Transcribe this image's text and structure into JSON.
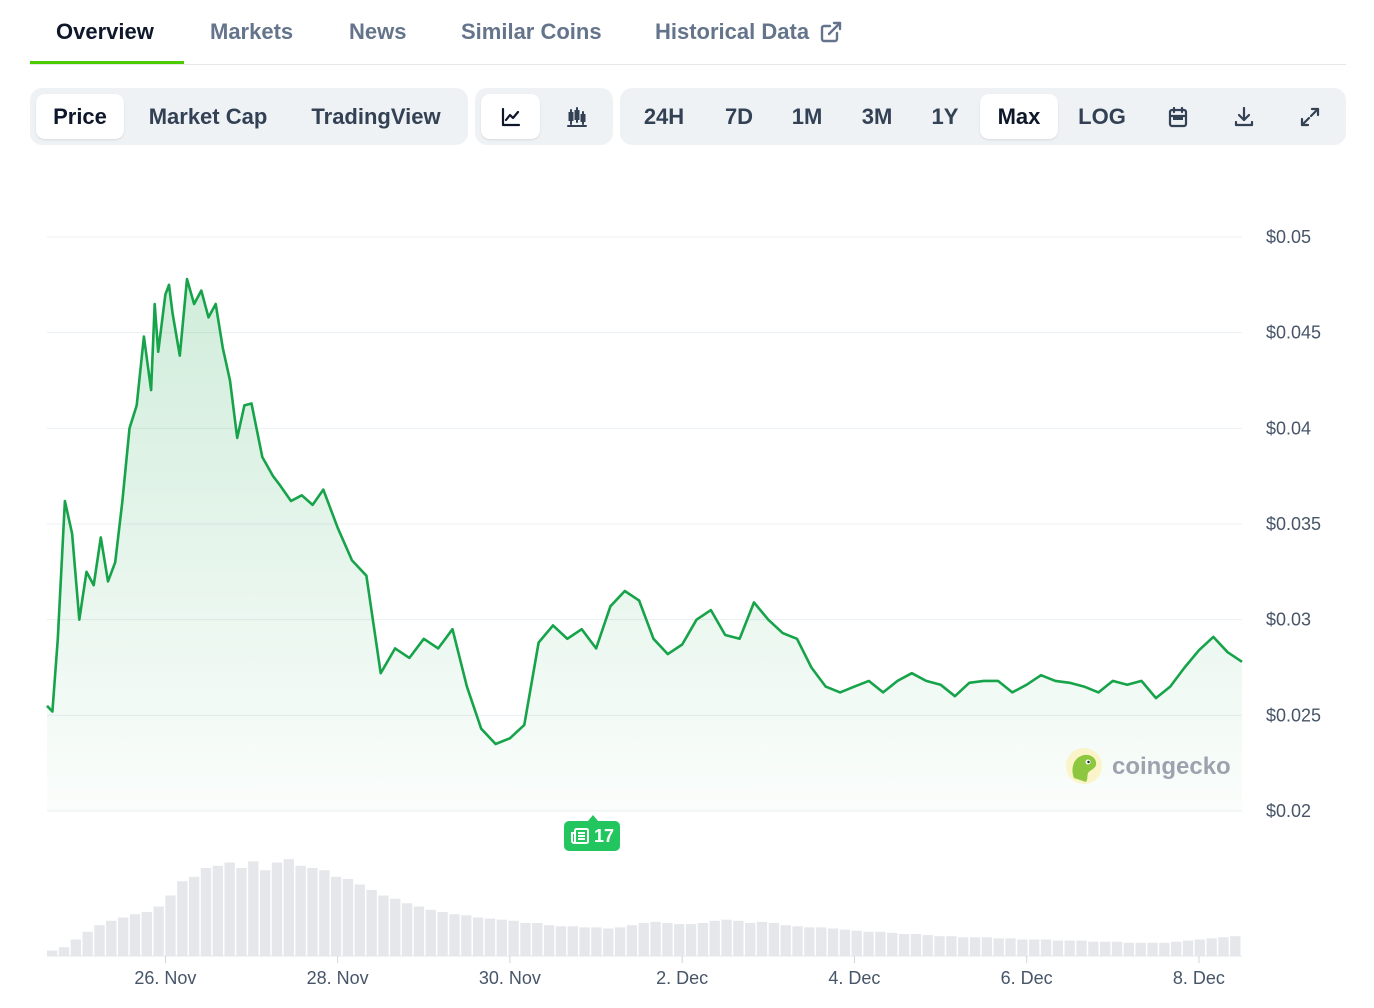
{
  "tabs": [
    {
      "label": "Overview",
      "active": true
    },
    {
      "label": "Markets"
    },
    {
      "label": "News"
    },
    {
      "label": "Similar Coins"
    },
    {
      "label": "Historical Data",
      "icon": "external-link-icon"
    }
  ],
  "toolbar": {
    "view_options": [
      "Price",
      "Market Cap",
      "TradingView"
    ],
    "selected_view": "Price",
    "chart_styles": [
      {
        "icon": "line-chart-icon",
        "active": true
      },
      {
        "icon": "candlestick-chart-icon",
        "active": false
      }
    ],
    "ranges": [
      "24H",
      "7D",
      "1M",
      "3M",
      "1Y",
      "Max",
      "LOG"
    ],
    "selected_range": "Max",
    "tools": [
      "calendar-icon",
      "download-icon",
      "expand-icon"
    ]
  },
  "news_badge": {
    "count": "17",
    "icon": "newspaper-icon"
  },
  "watermark": {
    "text": "coingecko",
    "icon": "coingecko-logo-icon"
  },
  "colors": {
    "accent": "#4bcc00",
    "line": "#16a34a",
    "badge": "#22c55e",
    "volume": "#e5e7eb"
  },
  "chart_data": {
    "type": "area",
    "title": "",
    "xlabel": "",
    "ylabel": "",
    "y_axis_position": "right",
    "grid": true,
    "ylim": [
      0.02,
      0.05
    ],
    "xlim": [
      "2024-11-24T15:00",
      "2024-12-08T12:00"
    ],
    "yticks": [
      {
        "value": 0.05,
        "label": "$0.05"
      },
      {
        "value": 0.045,
        "label": "$0.045"
      },
      {
        "value": 0.04,
        "label": "$0.04"
      },
      {
        "value": 0.035,
        "label": "$0.035"
      },
      {
        "value": 0.03,
        "label": "$0.03"
      },
      {
        "value": 0.025,
        "label": "$0.025"
      },
      {
        "value": 0.02,
        "label": "$0.02"
      }
    ],
    "xticks": [
      {
        "value": "2024-11-26",
        "label": "26. Nov"
      },
      {
        "value": "2024-11-28",
        "label": "28. Nov"
      },
      {
        "value": "2024-11-30",
        "label": "30. Nov"
      },
      {
        "value": "2024-12-02",
        "label": "2. Dec"
      },
      {
        "value": "2024-12-04",
        "label": "4. Dec"
      },
      {
        "value": "2024-12-06",
        "label": "6. Dec"
      },
      {
        "value": "2024-12-08",
        "label": "8. Dec"
      }
    ],
    "price_series": {
      "x": [
        "2024-11-24T15:00",
        "2024-11-24T16:30",
        "2024-11-24T18:00",
        "2024-11-24T20:00",
        "2024-11-24T22:00",
        "2024-11-25T00:00",
        "2024-11-25T02:00",
        "2024-11-25T04:00",
        "2024-11-25T06:00",
        "2024-11-25T08:00",
        "2024-11-25T10:00",
        "2024-11-25T12:00",
        "2024-11-25T14:00",
        "2024-11-25T16:00",
        "2024-11-25T18:00",
        "2024-11-25T20:00",
        "2024-11-25T21:00",
        "2024-11-25T22:00",
        "2024-11-26T00:00",
        "2024-11-26T01:00",
        "2024-11-26T02:00",
        "2024-11-26T04:00",
        "2024-11-26T06:00",
        "2024-11-26T08:00",
        "2024-11-26T10:00",
        "2024-11-26T12:00",
        "2024-11-26T14:00",
        "2024-11-26T16:00",
        "2024-11-26T18:00",
        "2024-11-26T20:00",
        "2024-11-26T22:00",
        "2024-11-27T00:00",
        "2024-11-27T03:00",
        "2024-11-27T06:00",
        "2024-11-27T08:00",
        "2024-11-27T11:00",
        "2024-11-27T14:00",
        "2024-11-27T17:00",
        "2024-11-27T20:00",
        "2024-11-28T00:00",
        "2024-11-28T04:00",
        "2024-11-28T08:00",
        "2024-11-28T12:00",
        "2024-11-28T16:00",
        "2024-11-28T20:00",
        "2024-11-29T00:00",
        "2024-11-29T04:00",
        "2024-11-29T08:00",
        "2024-11-29T12:00",
        "2024-11-29T16:00",
        "2024-11-29T20:00",
        "2024-11-30T00:00",
        "2024-11-30T04:00",
        "2024-11-30T08:00",
        "2024-11-30T12:00",
        "2024-11-30T16:00",
        "2024-11-30T20:00",
        "2024-12-01T00:00",
        "2024-12-01T04:00",
        "2024-12-01T08:00",
        "2024-12-01T12:00",
        "2024-12-01T16:00",
        "2024-12-01T20:00",
        "2024-12-02T00:00",
        "2024-12-02T04:00",
        "2024-12-02T08:00",
        "2024-12-02T12:00",
        "2024-12-02T16:00",
        "2024-12-02T20:00",
        "2024-12-03T00:00",
        "2024-12-03T04:00",
        "2024-12-03T08:00",
        "2024-12-03T12:00",
        "2024-12-03T16:00",
        "2024-12-03T20:00",
        "2024-12-04T00:00",
        "2024-12-04T04:00",
        "2024-12-04T08:00",
        "2024-12-04T12:00",
        "2024-12-04T16:00",
        "2024-12-04T20:00",
        "2024-12-05T00:00",
        "2024-12-05T04:00",
        "2024-12-05T08:00",
        "2024-12-05T12:00",
        "2024-12-05T16:00",
        "2024-12-05T20:00",
        "2024-12-06T00:00",
        "2024-12-06T04:00",
        "2024-12-06T08:00",
        "2024-12-06T12:00",
        "2024-12-06T16:00",
        "2024-12-06T20:00",
        "2024-12-07T00:00",
        "2024-12-07T04:00",
        "2024-12-07T08:00",
        "2024-12-07T12:00",
        "2024-12-07T16:00",
        "2024-12-07T20:00",
        "2024-12-08T00:00",
        "2024-12-08T04:00",
        "2024-12-08T08:00",
        "2024-12-08T12:00"
      ],
      "y": [
        0.0255,
        0.0252,
        0.029,
        0.0362,
        0.0345,
        0.03,
        0.0325,
        0.0318,
        0.0343,
        0.032,
        0.033,
        0.0362,
        0.04,
        0.0412,
        0.0448,
        0.042,
        0.0465,
        0.044,
        0.047,
        0.0475,
        0.046,
        0.0438,
        0.0478,
        0.0465,
        0.0472,
        0.0458,
        0.0465,
        0.0442,
        0.0425,
        0.0395,
        0.0412,
        0.0413,
        0.0385,
        0.0375,
        0.037,
        0.0362,
        0.0365,
        0.036,
        0.0368,
        0.0348,
        0.0331,
        0.0323,
        0.0272,
        0.0285,
        0.028,
        0.029,
        0.0285,
        0.0295,
        0.0265,
        0.0243,
        0.0235,
        0.0238,
        0.0245,
        0.0288,
        0.0297,
        0.029,
        0.0295,
        0.0285,
        0.0307,
        0.0315,
        0.031,
        0.029,
        0.0282,
        0.0287,
        0.03,
        0.0305,
        0.0292,
        0.029,
        0.0309,
        0.03,
        0.0293,
        0.029,
        0.0275,
        0.0265,
        0.0262,
        0.0265,
        0.0268,
        0.0262,
        0.0268,
        0.0272,
        0.0268,
        0.0266,
        0.026,
        0.0267,
        0.0268,
        0.0268,
        0.0262,
        0.0266,
        0.0271,
        0.0268,
        0.0267,
        0.0265,
        0.0262,
        0.0268,
        0.0266,
        0.0268,
        0.0259,
        0.0265,
        0.0275,
        0.0284,
        0.0291,
        0.0283,
        0.0278
      ]
    },
    "volume_series": {
      "x_start": "2024-11-24T15:00",
      "x_end": "2024-12-08T12:00",
      "values": [
        0.05,
        0.08,
        0.15,
        0.22,
        0.28,
        0.32,
        0.35,
        0.38,
        0.4,
        0.45,
        0.55,
        0.68,
        0.72,
        0.8,
        0.82,
        0.85,
        0.8,
        0.86,
        0.78,
        0.85,
        0.88,
        0.82,
        0.8,
        0.78,
        0.72,
        0.7,
        0.65,
        0.6,
        0.55,
        0.52,
        0.48,
        0.45,
        0.42,
        0.4,
        0.38,
        0.37,
        0.35,
        0.34,
        0.33,
        0.32,
        0.3,
        0.3,
        0.28,
        0.27,
        0.27,
        0.26,
        0.26,
        0.25,
        0.26,
        0.28,
        0.3,
        0.31,
        0.3,
        0.29,
        0.29,
        0.3,
        0.32,
        0.33,
        0.32,
        0.3,
        0.31,
        0.3,
        0.28,
        0.27,
        0.26,
        0.26,
        0.25,
        0.24,
        0.23,
        0.22,
        0.22,
        0.21,
        0.2,
        0.2,
        0.19,
        0.18,
        0.18,
        0.17,
        0.17,
        0.17,
        0.16,
        0.16,
        0.15,
        0.15,
        0.15,
        0.14,
        0.14,
        0.14,
        0.13,
        0.13,
        0.13,
        0.12,
        0.12,
        0.12,
        0.12,
        0.13,
        0.14,
        0.15,
        0.16,
        0.17,
        0.18
      ]
    }
  }
}
